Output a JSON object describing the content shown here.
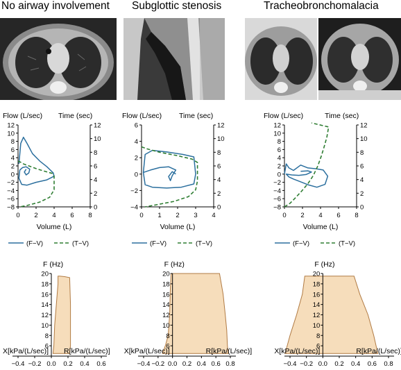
{
  "panels": [
    {
      "title": "No airway involvement",
      "loop": {
        "ylabel_left": "Flow (L/sec)",
        "ylabel_right": "Time (sec)",
        "xlabel": "Volume (L)",
        "y_ticks": [
          "12",
          "10",
          "8",
          "6",
          "4",
          "2",
          "0",
          "−2",
          "−4",
          "−6",
          "−8"
        ],
        "time_ticks": [
          "12",
          "10",
          "8",
          "6",
          "4",
          "2",
          "0"
        ],
        "x_ticks": [
          "0",
          "2",
          "4",
          "6",
          "8"
        ],
        "legend_fv": "(F−V)",
        "legend_tv": "(T−V)"
      },
      "impedance": {
        "ylabel": "F (Hz)",
        "xlabel_left": "X[kPa/(L/sec)]",
        "xlabel_right": "R[kPa/(L/sec)]",
        "y_ticks": [
          "20",
          "18",
          "16",
          "14",
          "12",
          "10",
          "8",
          "6"
        ],
        "x_ticks": [
          "−0.4",
          "−0.2",
          "0.0",
          "0.2",
          "0.4",
          "0.6"
        ]
      }
    },
    {
      "title": "Subglottic stenosis",
      "loop": {
        "ylabel_left": "Flow (L/sec)",
        "ylabel_right": "Time (sec)",
        "xlabel": "Volume (L)",
        "y_ticks": [
          "6",
          "4",
          "2",
          "0",
          "−2",
          "−4"
        ],
        "time_ticks": [
          "12",
          "10",
          "8",
          "6",
          "4",
          "2",
          "0"
        ],
        "x_ticks": [
          "0",
          "1",
          "2",
          "3",
          "4"
        ],
        "legend_fv": "(F−V)",
        "legend_tv": "(T−V)"
      },
      "impedance": {
        "ylabel": "F (Hz)",
        "xlabel_left": "X[kPa/(L/sec)]",
        "xlabel_right": "R[kPa/(L/sec)]",
        "y_ticks": [
          "20",
          "18",
          "16",
          "14",
          "12",
          "10",
          "8",
          "6"
        ],
        "x_ticks": [
          "−0.4",
          "−0.2",
          "0.0",
          "0.2",
          "0.4",
          "0.6",
          "0.8"
        ]
      }
    },
    {
      "title": "Tracheobronchomalacia",
      "loop": {
        "ylabel_left": "Flow (L/sec)",
        "ylabel_right": "Time (sec)",
        "xlabel": "Volume (L)",
        "y_ticks": [
          "12",
          "10",
          "8",
          "6",
          "4",
          "2",
          "0",
          "−2",
          "−4",
          "−6",
          "−8"
        ],
        "time_ticks": [
          "12",
          "10",
          "8",
          "6",
          "4",
          "2",
          "0"
        ],
        "x_ticks": [
          "0",
          "2",
          "4",
          "6",
          "8"
        ],
        "legend_fv": "(F−V)",
        "legend_tv": "(T−V)"
      },
      "impedance": {
        "ylabel": "F (Hz)",
        "xlabel_left": "X[kPa/(L/sec)]",
        "xlabel_right": "R[kPa/(L/sec)]",
        "y_ticks": [
          "20",
          "18",
          "16",
          "14",
          "12",
          "10",
          "8",
          "6"
        ],
        "x_ticks": [
          "−0.4",
          "−0.2",
          "0.0",
          "0.2",
          "0.4",
          "0.6",
          "0.8"
        ]
      }
    }
  ],
  "colors": {
    "fv_line": "#2b6f9e",
    "tv_line": "#2e7d32",
    "impedance_fill": "#f6ddbb",
    "impedance_edge": "#b07a43"
  },
  "chart_data": [
    {
      "type": "line",
      "panel": "No airway involvement",
      "xlabel": "Volume (L)",
      "ylabel": "Flow (L/sec)",
      "y2label": "Time (sec)",
      "xlim": [
        0,
        8
      ],
      "ylim": [
        -8,
        12
      ],
      "y2lim": [
        0,
        12
      ],
      "series": [
        {
          "name": "(F−V)",
          "axis": "left",
          "x": [
            0.1,
            0.3,
            0.6,
            1.0,
            1.6,
            2.4,
            3.2,
            3.9,
            4.0,
            3.2,
            2.0,
            1.0,
            0.4,
            0.1,
            0.2,
            0.5,
            0.9,
            1.3,
            1.2,
            0.9,
            0.7,
            0.9
          ],
          "y": [
            2.5,
            7.5,
            9.0,
            7.5,
            5.0,
            3.2,
            1.8,
            0.3,
            -0.5,
            -1.4,
            -2.0,
            -2.7,
            -2.5,
            -1.0,
            1.0,
            1.6,
            1.8,
            1.2,
            0.3,
            -0.2,
            0.5,
            1.2
          ]
        },
        {
          "name": "(T−V)",
          "axis": "right",
          "x": [
            0.0,
            0.2,
            0.6,
            1.2,
            2.0,
            3.0,
            3.8,
            4.0,
            4.0,
            3.5,
            2.4,
            1.0,
            0.2
          ],
          "y": [
            6.7,
            6.6,
            6.3,
            6.0,
            5.6,
            5.2,
            4.9,
            4.5,
            2.5,
            1.4,
            0.7,
            0.2,
            0.0
          ]
        }
      ]
    },
    {
      "type": "line",
      "panel": "Subglottic stenosis",
      "xlabel": "Volume (L)",
      "ylabel": "Flow (L/sec)",
      "y2label": "Time (sec)",
      "xlim": [
        0,
        4
      ],
      "ylim": [
        -4,
        6
      ],
      "y2lim": [
        0,
        12
      ],
      "series": [
        {
          "name": "(F−V)",
          "axis": "left",
          "x": [
            0.1,
            0.2,
            0.6,
            1.4,
            2.3,
            2.9,
            3.0,
            2.9,
            2.2,
            1.4,
            0.6,
            0.2,
            0.1,
            0.5,
            1.0,
            1.5,
            1.9,
            1.7,
            1.6,
            1.5,
            1.7,
            1.9
          ],
          "y": [
            0.2,
            2.4,
            2.9,
            2.7,
            2.4,
            2.1,
            0.0,
            -1.2,
            -1.6,
            -1.7,
            -1.6,
            -1.3,
            0.2,
            0.5,
            0.8,
            0.9,
            0.5,
            -0.2,
            -0.8,
            -0.3,
            0.3,
            0.0
          ]
        },
        {
          "name": "(T−V)",
          "axis": "right",
          "x": [
            0.0,
            0.3,
            1.0,
            2.0,
            2.8,
            3.1,
            3.1,
            3.0,
            2.6,
            1.8,
            0.8,
            0.2
          ],
          "y": [
            8.8,
            8.5,
            8.0,
            7.5,
            7.0,
            6.5,
            3.8,
            2.5,
            1.5,
            0.8,
            0.3,
            0.0
          ]
        }
      ]
    },
    {
      "type": "line",
      "panel": "Tracheobronchomalacia",
      "xlabel": "Volume (L)",
      "ylabel": "Flow (L/sec)",
      "y2label": "Time (sec)",
      "xlim": [
        0,
        8
      ],
      "ylim": [
        -8,
        12
      ],
      "y2lim": [
        0,
        12
      ],
      "series": [
        {
          "name": "(F−V)",
          "axis": "left",
          "x": [
            0.0,
            0.2,
            0.5,
            1.0,
            1.8,
            2.6,
            3.5,
            4.3,
            4.8,
            4.5,
            3.6,
            2.6,
            1.7,
            1.0,
            0.5,
            0.2,
            0.8,
            1.6,
            2.4,
            3.0,
            2.6,
            1.8
          ],
          "y": [
            0.0,
            2.5,
            1.5,
            0.9,
            2.2,
            1.5,
            1.3,
            1.0,
            -0.5,
            -2.5,
            -3.2,
            -2.6,
            -1.8,
            -1.2,
            -0.7,
            0.0,
            -0.2,
            -0.3,
            -0.1,
            0.5,
            0.8,
            0.7
          ]
        },
        {
          "name": "(T−V)",
          "axis": "right",
          "x": [
            0.0,
            0.6,
            1.2,
            1.9,
            2.6,
            3.2,
            3.7,
            4.1,
            4.4,
            4.7,
            4.9,
            3.0
          ],
          "y": [
            0.0,
            0.5,
            1.3,
            2.3,
            3.4,
            4.6,
            6.0,
            7.5,
            8.8,
            10.2,
            11.7,
            12.3
          ]
        }
      ]
    },
    {
      "type": "area",
      "panel": "No airway involvement",
      "xlabel": "X[kPa/(L/sec)] / R[kPa/(L/sec)]",
      "ylabel": "F (Hz)",
      "xlim": [
        -0.5,
        0.6
      ],
      "ylim": [
        4,
        20
      ],
      "series": [
        {
          "name": "X",
          "x": [
            0.08,
            0.08,
            0.06,
            0.04,
            0.03,
            0.02
          ],
          "y": [
            19.5,
            18,
            14,
            10,
            6,
            4.5
          ]
        },
        {
          "name": "R",
          "x": [
            0.1,
            0.16,
            0.22,
            0.23,
            0.23,
            0.22
          ],
          "y": [
            19.5,
            19.4,
            19.2,
            14,
            6,
            4.5
          ]
        }
      ]
    },
    {
      "type": "area",
      "panel": "Subglottic stenosis",
      "xlabel": "X[kPa/(L/sec)] / R[kPa/(L/sec)]",
      "ylabel": "F (Hz)",
      "xlim": [
        -0.5,
        0.8
      ],
      "ylim": [
        4,
        20
      ],
      "series": [
        {
          "name": "X",
          "x": [
            -0.02,
            -0.03,
            -0.04,
            -0.06,
            -0.1,
            -0.14
          ],
          "y": [
            20,
            17,
            12,
            8,
            6,
            4.5
          ]
        },
        {
          "name": "R",
          "x": [
            0.65,
            0.7,
            0.73,
            0.75,
            0.76,
            0.77
          ],
          "y": [
            20,
            16,
            12,
            9,
            6,
            4.5
          ]
        }
      ]
    },
    {
      "type": "area",
      "panel": "Tracheobronchomalacia",
      "xlabel": "X[kPa/(L/sec)] / R[kPa/(L/sec)]",
      "ylabel": "F (Hz)",
      "xlim": [
        -0.5,
        0.8
      ],
      "ylim": [
        4,
        20
      ],
      "series": [
        {
          "name": "X",
          "x": [
            -0.22,
            -0.25,
            -0.32,
            -0.4,
            -0.46
          ],
          "y": [
            19.5,
            16,
            12,
            8,
            4.5
          ]
        },
        {
          "name": "R",
          "x": [
            0.38,
            0.45,
            0.55,
            0.62,
            0.67
          ],
          "y": [
            19.5,
            16,
            12,
            8,
            4.5
          ]
        }
      ]
    }
  ]
}
